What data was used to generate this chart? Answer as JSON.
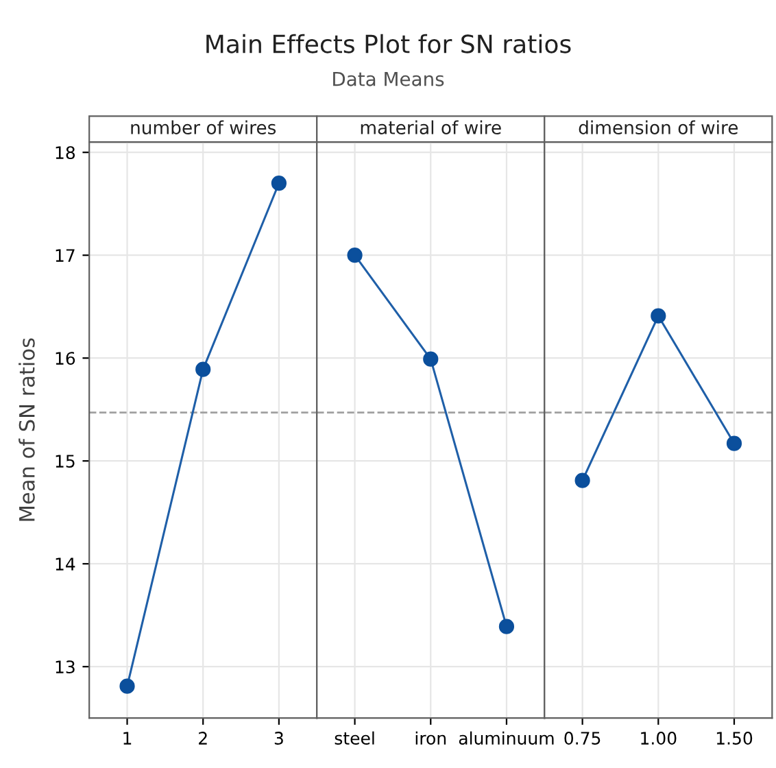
{
  "chart_data": [
    {
      "type": "line",
      "title": "number of wires",
      "ylabel": "Mean of SN ratios",
      "annotations": [
        "Main Effects Plot for SN ratios",
        "Data Means"
      ],
      "categories": [
        "1",
        "2",
        "3"
      ],
      "series": [
        {
          "color": "#1f5fa8",
          "values": [
            12.81,
            15.89,
            17.7
          ]
        }
      ],
      "ylim": [
        12.5,
        18.1
      ],
      "yticks": [
        13,
        14,
        15,
        16,
        17,
        18
      ],
      "grid": true,
      "marker": "circle",
      "line_style": "solid",
      "ref_lines": [
        {
          "axis": "y",
          "value": 15.47,
          "color": "#a0a0a0",
          "line_style": "dashed"
        }
      ]
    },
    {
      "type": "line",
      "title": "material of wire",
      "categories": [
        "steel",
        "iron",
        "aluminuum"
      ],
      "series": [
        {
          "color": "#1f5fa8",
          "values": [
            17.0,
            15.99,
            13.39
          ]
        }
      ],
      "ylim": [
        12.5,
        18.1
      ],
      "yticks": [
        13,
        14,
        15,
        16,
        17,
        18
      ],
      "tick_labels": "x",
      "grid": true,
      "marker": "circle",
      "line_style": "solid",
      "ref_lines": [
        {
          "axis": "y",
          "value": 15.47,
          "color": "#a0a0a0",
          "line_style": "dashed"
        }
      ]
    },
    {
      "type": "line",
      "title": "dimension of wire",
      "categories": [
        "0.75",
        "1.00",
        "1.50"
      ],
      "series": [
        {
          "color": "#1f5fa8",
          "values": [
            14.81,
            16.41,
            15.17
          ]
        }
      ],
      "ylim": [
        12.5,
        18.1
      ],
      "yticks": [
        13,
        14,
        15,
        16,
        17,
        18
      ],
      "tick_labels": "x",
      "grid": true,
      "marker": "circle",
      "line_style": "solid",
      "ref_lines": [
        {
          "axis": "y",
          "value": 15.47,
          "color": "#a0a0a0",
          "line_style": "dashed"
        }
      ]
    }
  ]
}
